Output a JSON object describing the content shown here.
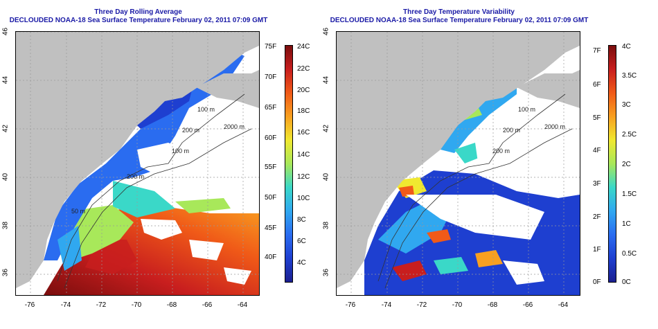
{
  "left_panel": {
    "title_line1": "Three Day Rolling Average",
    "title_line2": "DECLOUDED NOAA-18 Sea Surface Temperature February 02, 2011 07:09 GMT",
    "y_ticks": [
      "46",
      "44",
      "42",
      "40",
      "38",
      "36"
    ],
    "x_ticks": [
      "-76",
      "-74",
      "-72",
      "-70",
      "-68",
      "-66",
      "-64"
    ],
    "isobath_labels": [
      "100 m",
      "200 m",
      "2000 m",
      "100 m",
      "200 m",
      "50 m"
    ],
    "colorbar_left_labels": [
      "75F",
      "70F",
      "65F",
      "60F",
      "55F",
      "50F",
      "45F",
      "40F"
    ],
    "colorbar_right_labels": [
      "24C",
      "22C",
      "20C",
      "18C",
      "16C",
      "14C",
      "12C",
      "10C",
      "8C",
      "6C",
      "4C"
    ]
  },
  "right_panel": {
    "title_line1": "Three Day Temperature Variability",
    "title_line2": "DECLOUDED NOAA-18 Sea Surface Temperature February 02, 2011 07:09 GMT",
    "y_ticks": [
      "46",
      "44",
      "42",
      "40",
      "38",
      "36"
    ],
    "x_ticks": [
      "-76",
      "-74",
      "-72",
      "-70",
      "-68",
      "-66",
      "-64"
    ],
    "isobath_labels": [
      "100 m",
      "200 m",
      "2000 m",
      "200 m"
    ],
    "colorbar_left_labels": [
      "7F",
      "6F",
      "5F",
      "4F",
      "3F",
      "2F",
      "1F",
      "0F"
    ],
    "colorbar_right_labels": [
      "4C",
      "3.5C",
      "3C",
      "2.5C",
      "2C",
      "1.5C",
      "1C",
      "0.5C",
      "0C"
    ]
  },
  "colors": {
    "land": "#c0c0c0",
    "no_data": "#ffffff",
    "title": "#1a1aa6",
    "sst_scale": [
      "#1b1f8f",
      "#1e3fd0",
      "#2a6cf0",
      "#30a8f0",
      "#3ad8c8",
      "#a8e85a",
      "#f0e830",
      "#f8a020",
      "#f05a18",
      "#c81e1e",
      "#7a0d0d"
    ],
    "var_scale": [
      "#1b1f8f",
      "#1e3fd0",
      "#2a6cf0",
      "#30a8f0",
      "#3ad8c8",
      "#a8e85a",
      "#f0e830",
      "#f8a020",
      "#f05a18",
      "#c81e1e",
      "#7a0d0d"
    ]
  }
}
